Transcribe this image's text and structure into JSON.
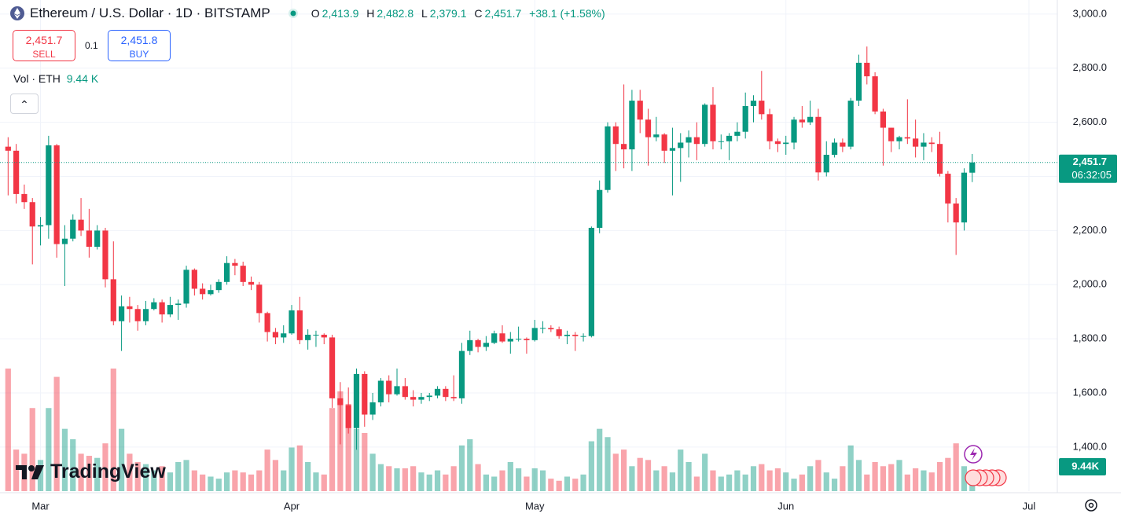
{
  "header": {
    "title": "Ethereum / U.S. Dollar · 1D · BITSTAMP",
    "open_label": "O",
    "open": "2,413.9",
    "high_label": "H",
    "high": "2,482.8",
    "low_label": "L",
    "low": "2,379.1",
    "close_label": "C",
    "close": "2,451.7",
    "change": "+38.1 (+1.58%)"
  },
  "trade": {
    "sell_price": "2,451.7",
    "sell": "SELL",
    "quantity": "0.1",
    "buy_price": "2,451.8",
    "buy": "BUY"
  },
  "volume_legend": {
    "label": "Vol · ETH",
    "value": "9.44 K"
  },
  "branding": "TradingView",
  "chart_data": {
    "type": "candlestick",
    "up_color": "#089981",
    "down_color": "#f23645",
    "grid": true,
    "price_label": "2,451.7",
    "countdown": "06:32:05",
    "volume_label": "9.44K",
    "xlim": [
      -1,
      129.5
    ],
    "ylim": [
      1237,
      3052
    ],
    "xticks": [
      {
        "value": 4,
        "label": "Mar"
      },
      {
        "value": 35,
        "label": "Apr"
      },
      {
        "value": 65,
        "label": "May"
      },
      {
        "value": 96,
        "label": "Jun"
      },
      {
        "value": 126,
        "label": "Jul"
      }
    ],
    "yticks": [
      {
        "value": 1400,
        "label": "1,400.0"
      },
      {
        "value": 1600,
        "label": "1,600.0"
      },
      {
        "value": 1800,
        "label": "1,800.0"
      },
      {
        "value": 2000,
        "label": "2,000.0"
      },
      {
        "value": 2200,
        "label": "2,200.0"
      },
      {
        "value": 2400,
        "label": "2,400.0"
      },
      {
        "value": 2600,
        "label": "2,600.0"
      },
      {
        "value": 2800,
        "label": "2,800.0"
      },
      {
        "value": 3000,
        "label": "3,000.0"
      }
    ],
    "open": [
      2510,
      2495,
      2335,
      2305,
      2215,
      2220,
      2515,
      2150,
      2170,
      2240,
      2200,
      2140,
      2200,
      2020,
      1865,
      1920,
      1910,
      1865,
      1910,
      1935,
      1890,
      1925,
      1930,
      2055,
      1985,
      1965,
      1980,
      2010,
      2080,
      2070,
      2010,
      2000,
      1895,
      1825,
      1805,
      1820,
      1905,
      1795,
      1815,
      1815,
      1805,
      1580,
      1555,
      1470,
      1670,
      1520,
      1565,
      1645,
      1595,
      1625,
      1585,
      1575,
      1585,
      1590,
      1615,
      1585,
      1580,
      1755,
      1795,
      1770,
      1785,
      1820,
      1790,
      1800,
      1800,
      1795,
      1840,
      1840,
      1835,
      1810,
      1815,
      1810,
      1810,
      2210,
      2350,
      2585,
      2520,
      2500,
      2680,
      2610,
      2545,
      2555,
      2495,
      2505,
      2525,
      2545,
      2520,
      2665,
      2530,
      2530,
      2550,
      2565,
      2660,
      2680,
      2630,
      2530,
      2520,
      2525,
      2610,
      2600,
      2620,
      2415,
      2480,
      2525,
      2510,
      2680,
      2820,
      2770,
      2640,
      2580,
      2530,
      2545,
      2540,
      2510,
      2525,
      2520,
      2410,
      2300,
      2230,
      2413.9
    ],
    "high": [
      2545,
      2520,
      2370,
      2320,
      2250,
      2550,
      2520,
      2220,
      2260,
      2320,
      2280,
      2220,
      2210,
      2160,
      1960,
      1955,
      1925,
      1940,
      1950,
      1945,
      1955,
      1945,
      2070,
      2060,
      2005,
      2000,
      2020,
      2105,
      2095,
      2085,
      2030,
      2010,
      1900,
      1840,
      1850,
      1925,
      1955,
      1835,
      1830,
      1820,
      1815,
      1640,
      1620,
      1690,
      1680,
      1600,
      1655,
      1665,
      1690,
      1655,
      1610,
      1600,
      1600,
      1625,
      1625,
      1665,
      1785,
      1830,
      1800,
      1810,
      1830,
      1850,
      1825,
      1845,
      1805,
      1870,
      1865,
      1850,
      1845,
      1830,
      1825,
      1820,
      2215,
      2385,
      2600,
      2600,
      2740,
      2720,
      2720,
      2650,
      2620,
      2560,
      2580,
      2560,
      2570,
      2600,
      2670,
      2730,
      2555,
      2560,
      2600,
      2710,
      2700,
      2790,
      2650,
      2540,
      2550,
      2620,
      2660,
      2680,
      2650,
      2530,
      2540,
      2540,
      2690,
      2850,
      2880,
      2785,
      2650,
      2580,
      2550,
      2685,
      2610,
      2560,
      2545,
      2565,
      2420,
      2320,
      2430,
      2482.8
    ],
    "low": [
      2330,
      2300,
      2280,
      2075,
      2145,
      2170,
      2100,
      1995,
      2160,
      2180,
      2100,
      2130,
      1990,
      1850,
      1755,
      1860,
      1830,
      1850,
      1905,
      1860,
      1880,
      1870,
      1915,
      1960,
      1945,
      1960,
      1970,
      2000,
      2035,
      1995,
      1980,
      1860,
      1790,
      1780,
      1785,
      1815,
      1780,
      1760,
      1770,
      1780,
      1545,
      1410,
      1450,
      1390,
      1475,
      1500,
      1550,
      1565,
      1590,
      1575,
      1550,
      1560,
      1570,
      1580,
      1570,
      1570,
      1560,
      1740,
      1750,
      1755,
      1780,
      1785,
      1745,
      1790,
      1745,
      1790,
      1820,
      1825,
      1800,
      1780,
      1755,
      1790,
      1805,
      2190,
      2340,
      2420,
      2430,
      2420,
      2560,
      2440,
      2530,
      2450,
      2330,
      2380,
      2470,
      2460,
      2510,
      2500,
      2500,
      2460,
      2530,
      2540,
      2600,
      2610,
      2500,
      2490,
      2480,
      2500,
      2580,
      2590,
      2385,
      2400,
      2470,
      2490,
      2500,
      2660,
      2740,
      2630,
      2440,
      2490,
      2500,
      2520,
      2470,
      2460,
      2490,
      2400,
      2230,
      2110,
      2200,
      2379.1
    ],
    "close": [
      2495,
      2335,
      2305,
      2215,
      2220,
      2515,
      2150,
      2170,
      2240,
      2200,
      2140,
      2200,
      2020,
      1865,
      1920,
      1910,
      1865,
      1910,
      1935,
      1890,
      1925,
      1930,
      2055,
      1985,
      1965,
      1980,
      2010,
      2080,
      2070,
      2010,
      2000,
      1895,
      1825,
      1805,
      1820,
      1905,
      1795,
      1815,
      1815,
      1805,
      1580,
      1555,
      1470,
      1670,
      1520,
      1565,
      1645,
      1595,
      1625,
      1585,
      1575,
      1585,
      1590,
      1615,
      1585,
      1580,
      1755,
      1795,
      1770,
      1785,
      1820,
      1790,
      1800,
      1800,
      1795,
      1840,
      1840,
      1835,
      1810,
      1815,
      1810,
      1810,
      2210,
      2350,
      2585,
      2520,
      2500,
      2680,
      2610,
      2545,
      2555,
      2495,
      2505,
      2525,
      2545,
      2520,
      2665,
      2530,
      2530,
      2550,
      2565,
      2660,
      2680,
      2630,
      2530,
      2520,
      2525,
      2610,
      2600,
      2620,
      2415,
      2480,
      2525,
      2510,
      2680,
      2820,
      2770,
      2640,
      2580,
      2530,
      2545,
      2540,
      2510,
      2525,
      2520,
      2410,
      2300,
      2230,
      2414,
      2451.7
    ],
    "volume": [
      59,
      20,
      18,
      40,
      15,
      40,
      55,
      30,
      25,
      18,
      17,
      16,
      23,
      59,
      30,
      18,
      14,
      13,
      10,
      12,
      9,
      14,
      15,
      10,
      8,
      7,
      6,
      9,
      10,
      9,
      8,
      10,
      20,
      15,
      10,
      21,
      22,
      14,
      9,
      8,
      40,
      48,
      42,
      30,
      28,
      18,
      13,
      12,
      11,
      11,
      12,
      9,
      8,
      10,
      8,
      12,
      22,
      25,
      13,
      8,
      7,
      10,
      14,
      11,
      7,
      11,
      10,
      6,
      5,
      7,
      6,
      8,
      24,
      30,
      26,
      18,
      20,
      12,
      16,
      15,
      10,
      12,
      9,
      20,
      14,
      7,
      18,
      10,
      7,
      8,
      10,
      8,
      12,
      13,
      10,
      11,
      9,
      6,
      8,
      12,
      15,
      9,
      6,
      12,
      22,
      15,
      8,
      14,
      12,
      13,
      15,
      8,
      11,
      10,
      9,
      14,
      16,
      23,
      12,
      9.44
    ]
  }
}
